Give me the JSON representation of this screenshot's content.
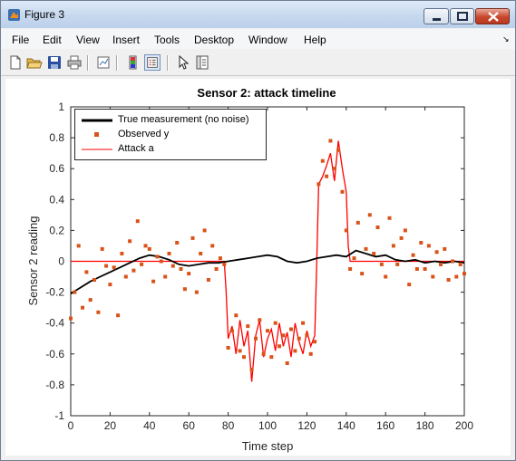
{
  "window": {
    "title": "Figure 3",
    "buttons": [
      "minimize",
      "maximize",
      "close"
    ]
  },
  "menubar": {
    "items": [
      "File",
      "Edit",
      "View",
      "Insert",
      "Tools",
      "Desktop",
      "Window",
      "Help"
    ]
  },
  "toolbar": {
    "icons": [
      "new-figure-icon",
      "open-file-icon",
      "save-icon",
      "print-icon",
      "link-plot-icon",
      "colorbar-icon",
      "legend-icon",
      "pointer-icon",
      "property-editor-icon"
    ]
  },
  "chart_data": {
    "type": "line",
    "title": "Sensor 2: attack timeline",
    "xlabel": "Time step",
    "ylabel": "Sensor 2 reading",
    "xlim": [
      0,
      200
    ],
    "ylim": [
      -1,
      1
    ],
    "xticks": [
      "0",
      "20",
      "40",
      "60",
      "80",
      "100",
      "120",
      "140",
      "160",
      "180",
      "200"
    ],
    "yticks": [
      "-1",
      "-0.8",
      "-0.6",
      "-0.4",
      "-0.2",
      "0",
      "0.2",
      "0.4",
      "0.6",
      "0.8",
      "1"
    ],
    "grid": false,
    "legend_position": "top-left",
    "colors": {
      "true_measurement": "#000000",
      "observed": "#d95319",
      "attack": "#ff0000"
    },
    "series": [
      {
        "name": "True measurement (no noise)",
        "style": "line",
        "x": [
          0,
          5,
          10,
          15,
          20,
          25,
          30,
          35,
          40,
          45,
          50,
          55,
          60,
          65,
          70,
          75,
          80,
          85,
          90,
          95,
          100,
          105,
          110,
          115,
          120,
          125,
          130,
          135,
          140,
          145,
          150,
          155,
          160,
          165,
          170,
          175,
          180,
          185,
          190,
          195,
          200
        ],
        "values": [
          -0.21,
          -0.17,
          -0.13,
          -0.1,
          -0.07,
          -0.04,
          -0.01,
          0.02,
          0.04,
          0.03,
          0.01,
          -0.02,
          -0.03,
          -0.02,
          -0.01,
          -0.01,
          0.0,
          0.01,
          0.02,
          0.03,
          0.04,
          0.03,
          0.0,
          -0.01,
          0.0,
          0.02,
          0.03,
          0.04,
          0.03,
          0.07,
          0.05,
          0.03,
          0.04,
          0.01,
          0.0,
          0.01,
          -0.01,
          0.0,
          -0.01,
          0.0,
          -0.01
        ]
      },
      {
        "name": "Observed y",
        "style": "markers",
        "x": [
          0,
          2,
          4,
          6,
          8,
          10,
          12,
          14,
          16,
          18,
          20,
          22,
          24,
          26,
          28,
          30,
          32,
          34,
          36,
          38,
          40,
          42,
          44,
          46,
          48,
          50,
          52,
          54,
          56,
          58,
          60,
          62,
          64,
          66,
          68,
          70,
          72,
          74,
          76,
          78,
          80,
          82,
          84,
          86,
          88,
          90,
          92,
          94,
          96,
          98,
          100,
          102,
          104,
          106,
          108,
          110,
          112,
          114,
          116,
          118,
          120,
          122,
          124,
          126,
          128,
          130,
          132,
          134,
          136,
          138,
          140,
          142,
          144,
          146,
          148,
          150,
          152,
          154,
          156,
          158,
          160,
          162,
          164,
          166,
          168,
          170,
          172,
          174,
          176,
          178,
          180,
          182,
          184,
          186,
          188,
          190,
          192,
          194,
          196,
          198,
          200
        ],
        "values": [
          -0.37,
          -0.2,
          0.1,
          -0.3,
          -0.07,
          -0.25,
          -0.12,
          -0.33,
          0.08,
          -0.03,
          -0.15,
          -0.04,
          -0.35,
          0.05,
          -0.1,
          0.13,
          -0.06,
          0.26,
          -0.02,
          0.1,
          0.08,
          -0.13,
          0.03,
          0.0,
          -0.1,
          0.05,
          -0.03,
          0.12,
          -0.05,
          -0.18,
          -0.08,
          0.15,
          -0.2,
          0.05,
          0.2,
          -0.12,
          0.1,
          -0.05,
          0.02,
          -0.02,
          -0.56,
          -0.45,
          -0.35,
          -0.58,
          -0.62,
          -0.42,
          -0.7,
          -0.5,
          -0.38,
          -0.6,
          -0.45,
          -0.62,
          -0.4,
          -0.55,
          -0.48,
          -0.66,
          -0.44,
          -0.58,
          -0.5,
          -0.4,
          -0.48,
          -0.6,
          -0.52,
          0.5,
          0.65,
          0.55,
          0.78,
          0.6,
          0.72,
          0.45,
          0.2,
          -0.05,
          0.02,
          0.25,
          -0.08,
          0.08,
          0.3,
          0.05,
          0.22,
          -0.02,
          -0.1,
          0.28,
          0.1,
          -0.02,
          0.15,
          0.2,
          -0.15,
          0.04,
          -0.05,
          0.12,
          -0.05,
          0.1,
          -0.1,
          0.06,
          -0.02,
          0.08,
          -0.12,
          0.0,
          -0.1,
          -0.02,
          -0.08
        ]
      },
      {
        "name": "Attack a",
        "style": "line",
        "x": [
          0,
          78,
          79,
          80,
          82,
          84,
          86,
          88,
          90,
          92,
          94,
          96,
          98,
          100,
          102,
          104,
          106,
          108,
          110,
          112,
          114,
          116,
          118,
          120,
          122,
          124,
          125,
          126,
          128,
          130,
          132,
          134,
          136,
          138,
          140,
          141,
          142,
          200
        ],
        "values": [
          0,
          0,
          -0.2,
          -0.5,
          -0.42,
          -0.6,
          -0.38,
          -0.55,
          -0.45,
          -0.78,
          -0.48,
          -0.38,
          -0.62,
          -0.5,
          -0.44,
          -0.58,
          -0.4,
          -0.55,
          -0.46,
          -0.62,
          -0.4,
          -0.52,
          -0.6,
          -0.45,
          -0.55,
          -0.48,
          0.0,
          0.5,
          0.55,
          0.62,
          0.7,
          0.52,
          0.78,
          0.6,
          0.45,
          0.1,
          0.0,
          0
        ]
      }
    ]
  }
}
